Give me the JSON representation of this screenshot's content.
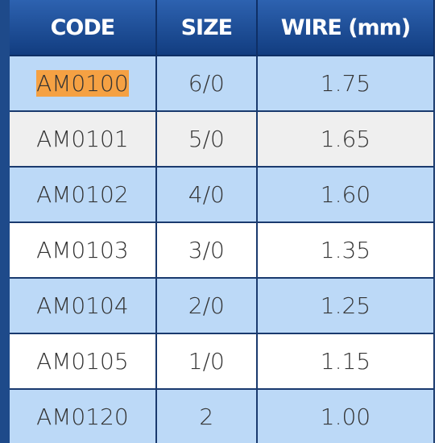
{
  "table": {
    "header": [
      "CODE",
      "SIZE",
      "WIRE (mm)"
    ],
    "rows": [
      [
        "AM0100",
        "6/0",
        "1.75"
      ],
      [
        "AM0101",
        "5/0",
        "1.65"
      ],
      [
        "AM0102",
        "4/0",
        "1.60"
      ],
      [
        "AM0103",
        "3/0",
        "1.35"
      ],
      [
        "AM0104",
        "2/0",
        "1.25"
      ],
      [
        "AM0105",
        "1/0",
        "1.15"
      ],
      [
        "AM0120",
        "2",
        "1.00"
      ]
    ]
  }
}
